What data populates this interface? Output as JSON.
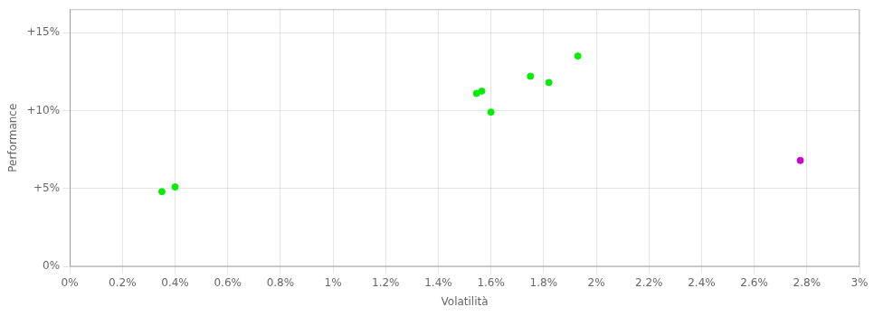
{
  "chart_data": {
    "type": "scatter",
    "xlabel": "Volatilità",
    "ylabel": "Performance",
    "xlim": [
      0.0,
      0.03
    ],
    "ylim": [
      0.0,
      0.165
    ],
    "xticks": [
      {
        "value": 0.0,
        "label": "0%"
      },
      {
        "value": 0.002,
        "label": "0.2%"
      },
      {
        "value": 0.004,
        "label": "0.4%"
      },
      {
        "value": 0.006,
        "label": "0.6%"
      },
      {
        "value": 0.008,
        "label": "0.8%"
      },
      {
        "value": 0.01,
        "label": "1%"
      },
      {
        "value": 0.012,
        "label": "1.2%"
      },
      {
        "value": 0.014,
        "label": "1.4%"
      },
      {
        "value": 0.016,
        "label": "1.6%"
      },
      {
        "value": 0.018,
        "label": "1.8%"
      },
      {
        "value": 0.02,
        "label": "2%"
      },
      {
        "value": 0.022,
        "label": "2.2%"
      },
      {
        "value": 0.024,
        "label": "2.4%"
      },
      {
        "value": 0.026,
        "label": "2.6%"
      },
      {
        "value": 0.028,
        "label": "2.8%"
      },
      {
        "value": 0.03,
        "label": "3%"
      }
    ],
    "yticks": [
      {
        "value": 0.0,
        "label": "0%"
      },
      {
        "value": 0.05,
        "label": "+5%"
      },
      {
        "value": 0.1,
        "label": "+10%"
      },
      {
        "value": 0.15,
        "label": "+15%"
      }
    ],
    "grid": true,
    "series": [
      {
        "color": "#00ee00",
        "x": [
          0.0035,
          0.004,
          0.01545,
          0.01565,
          0.016,
          0.0175,
          0.0182,
          0.0193
        ],
        "values": [
          0.048,
          0.051,
          0.111,
          0.1125,
          0.099,
          0.122,
          0.118,
          0.135
        ]
      },
      {
        "color": "#cc00cc",
        "x": [
          0.02775
        ],
        "values": [
          0.068
        ]
      }
    ]
  }
}
